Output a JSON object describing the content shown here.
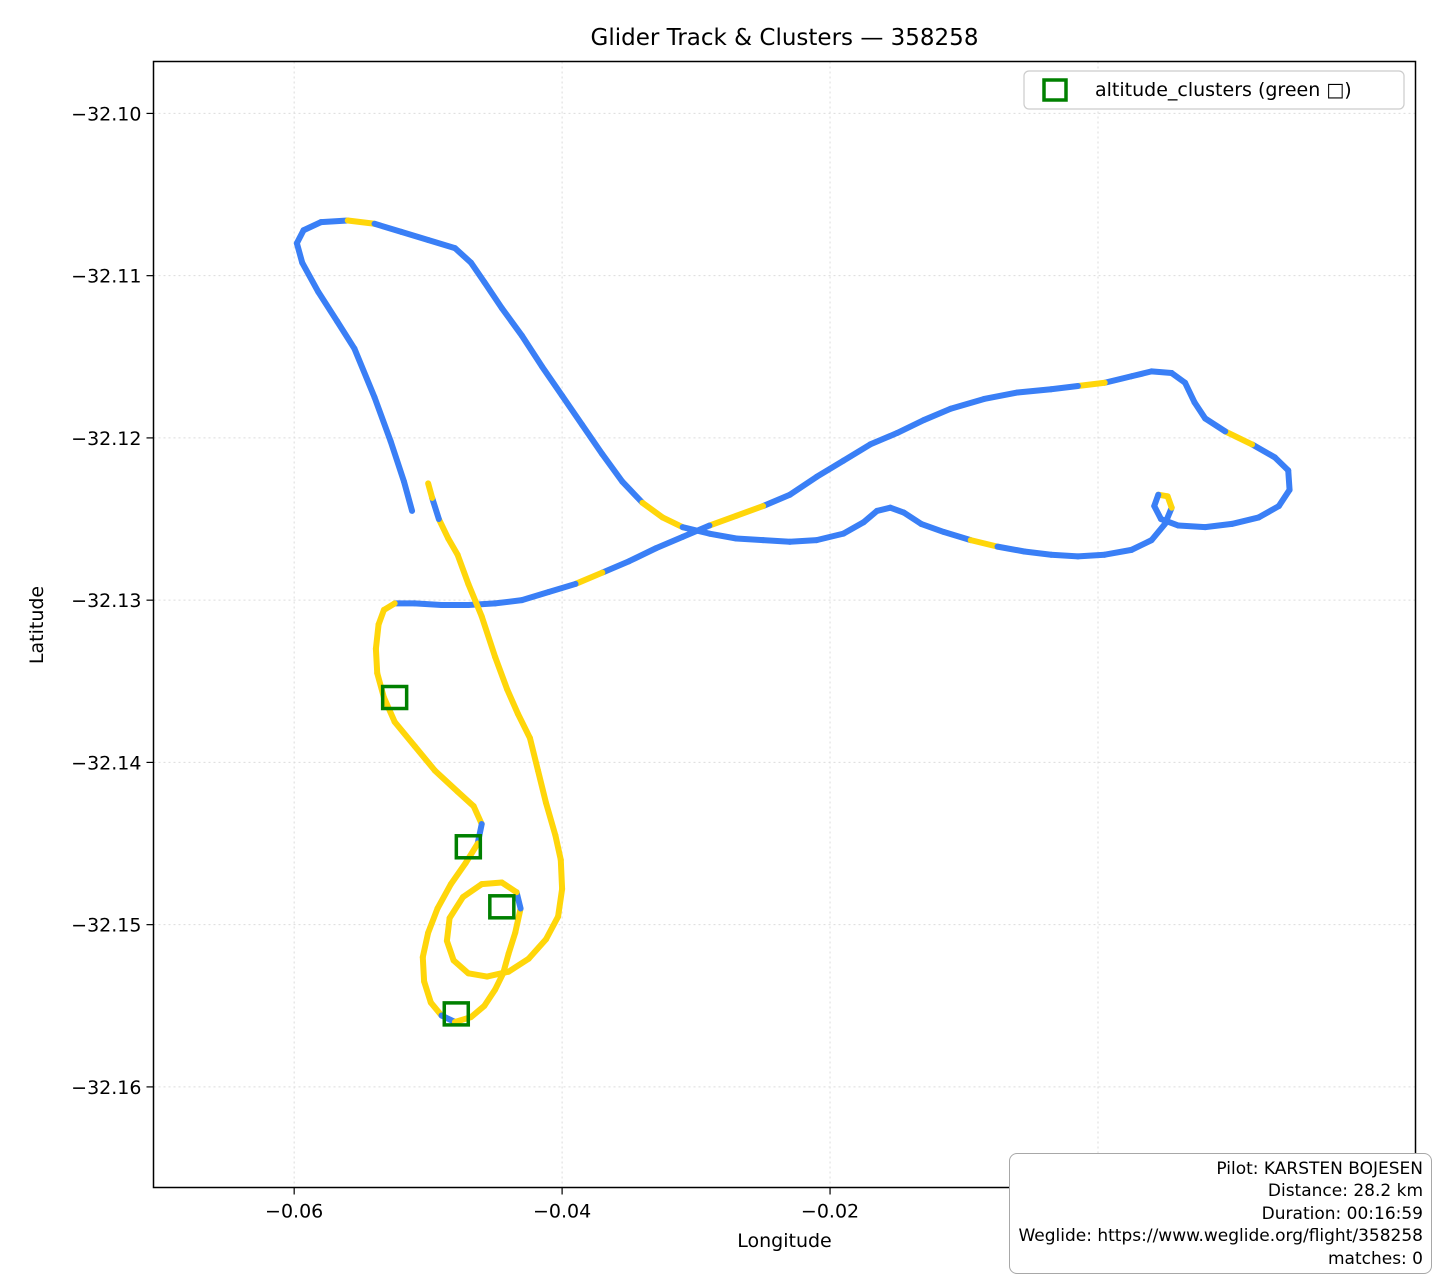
{
  "chart_data": {
    "type": "line",
    "title": "Glider Track & Clusters — 358258",
    "xlabel": "Longitude",
    "ylabel": "Latitude",
    "xlim": [
      -0.0705,
      0.0237
    ],
    "ylim": [
      -32.1662,
      -32.0968
    ],
    "xticks": [
      -0.06,
      -0.04,
      -0.02,
      0.0
    ],
    "xtick_labels": [
      "−0.06",
      "−0.04",
      "−0.02",
      "0.00"
    ],
    "yticks": [
      -32.1,
      -32.11,
      -32.12,
      -32.13,
      -32.14,
      -32.15,
      -32.16
    ],
    "ytick_labels": [
      "−32.10",
      "−32.11",
      "−32.12",
      "−32.13",
      "−32.14",
      "−32.15",
      "−32.16"
    ],
    "grid": true,
    "legend_position": "upper right",
    "legend_entries": [
      "altitude_clusters (green □)"
    ],
    "colors": {
      "track_blue": "#3a7ff6",
      "track_yellow": "#ffd60a",
      "cluster_green": "#008000",
      "grid": "#dcdcdc"
    },
    "series": [
      {
        "name": "track",
        "style": "segmented, colored by segment",
        "points": [
          [
            -0.0512,
            -32.1245
          ],
          [
            -0.0518,
            -32.1227
          ],
          [
            -0.0528,
            -32.1202
          ],
          [
            -0.054,
            -32.1175
          ],
          [
            -0.0555,
            -32.1145
          ],
          [
            -0.0568,
            -32.1128
          ],
          [
            -0.0582,
            -32.111
          ],
          [
            -0.0594,
            -32.1092
          ],
          [
            -0.0598,
            -32.108
          ],
          [
            -0.0593,
            -32.1072
          ],
          [
            -0.058,
            -32.1067
          ],
          [
            -0.056,
            -32.1066
          ],
          [
            -0.054,
            -32.1068
          ],
          [
            -0.052,
            -32.1073
          ],
          [
            -0.05,
            -32.1078
          ],
          [
            -0.048,
            -32.1083
          ],
          [
            -0.0468,
            -32.1092
          ],
          [
            -0.0458,
            -32.1104
          ],
          [
            -0.0445,
            -32.112
          ],
          [
            -0.043,
            -32.1137
          ],
          [
            -0.0415,
            -32.1156
          ],
          [
            -0.04,
            -32.1174
          ],
          [
            -0.0385,
            -32.1192
          ],
          [
            -0.037,
            -32.121
          ],
          [
            -0.0355,
            -32.1227
          ],
          [
            -0.034,
            -32.124
          ],
          [
            -0.0325,
            -32.1249
          ],
          [
            -0.031,
            -32.1255
          ],
          [
            -0.029,
            -32.1259
          ],
          [
            -0.027,
            -32.1262
          ],
          [
            -0.025,
            -32.1263
          ],
          [
            -0.023,
            -32.1264
          ],
          [
            -0.021,
            -32.1263
          ],
          [
            -0.019,
            -32.1259
          ],
          [
            -0.0175,
            -32.1252
          ],
          [
            -0.0165,
            -32.1245
          ],
          [
            -0.0155,
            -32.1243
          ],
          [
            -0.0145,
            -32.1246
          ],
          [
            -0.0132,
            -32.1253
          ],
          [
            -0.0115,
            -32.1258
          ],
          [
            -0.0095,
            -32.1263
          ],
          [
            -0.0075,
            -32.1267
          ],
          [
            -0.0055,
            -32.127
          ],
          [
            -0.0035,
            -32.1272
          ],
          [
            -0.0015,
            -32.1273
          ],
          [
            0.0005,
            -32.1272
          ],
          [
            0.0025,
            -32.1269
          ],
          [
            0.004,
            -32.1263
          ],
          [
            0.005,
            -32.1253
          ],
          [
            0.0055,
            -32.1243
          ],
          [
            0.0052,
            -32.1236
          ],
          [
            0.0045,
            -32.1235
          ],
          [
            0.0042,
            -32.1242
          ],
          [
            0.0047,
            -32.125
          ],
          [
            0.006,
            -32.1254
          ],
          [
            0.008,
            -32.1255
          ],
          [
            0.01,
            -32.1253
          ],
          [
            0.012,
            -32.1249
          ],
          [
            0.0135,
            -32.1242
          ],
          [
            0.0143,
            -32.1232
          ],
          [
            0.0142,
            -32.122
          ],
          [
            0.0132,
            -32.1212
          ],
          [
            0.0115,
            -32.1204
          ],
          [
            0.0095,
            -32.1196
          ],
          [
            0.008,
            -32.1188
          ],
          [
            0.0072,
            -32.1178
          ],
          [
            0.0065,
            -32.1166
          ],
          [
            0.0055,
            -32.116
          ],
          [
            0.004,
            -32.1159
          ],
          [
            0.0025,
            -32.1162
          ],
          [
            0.0005,
            -32.1166
          ],
          [
            -0.0015,
            -32.1168
          ],
          [
            -0.0035,
            -32.117
          ],
          [
            -0.006,
            -32.1172
          ],
          [
            -0.0085,
            -32.1176
          ],
          [
            -0.011,
            -32.1182
          ],
          [
            -0.013,
            -32.1189
          ],
          [
            -0.015,
            -32.1197
          ],
          [
            -0.017,
            -32.1204
          ],
          [
            -0.019,
            -32.1214
          ],
          [
            -0.021,
            -32.1224
          ],
          [
            -0.023,
            -32.1235
          ],
          [
            -0.025,
            -32.1242
          ],
          [
            -0.027,
            -32.1248
          ],
          [
            -0.029,
            -32.1254
          ],
          [
            -0.031,
            -32.1261
          ],
          [
            -0.033,
            -32.1268
          ],
          [
            -0.035,
            -32.1276
          ],
          [
            -0.037,
            -32.1283
          ],
          [
            -0.039,
            -32.129
          ],
          [
            -0.041,
            -32.1295
          ],
          [
            -0.043,
            -32.13
          ],
          [
            -0.045,
            -32.1302
          ],
          [
            -0.047,
            -32.1303
          ],
          [
            -0.049,
            -32.1303
          ],
          [
            -0.051,
            -32.1302
          ],
          [
            -0.0525,
            -32.1302
          ],
          [
            -0.0533,
            -32.1306
          ],
          [
            -0.0537,
            -32.1315
          ],
          [
            -0.0539,
            -32.133
          ],
          [
            -0.0538,
            -32.1345
          ],
          [
            -0.0533,
            -32.136
          ],
          [
            -0.0525,
            -32.1375
          ],
          [
            -0.051,
            -32.139
          ],
          [
            -0.0495,
            -32.1405
          ],
          [
            -0.0478,
            -32.1418
          ],
          [
            -0.0466,
            -32.1427
          ],
          [
            -0.046,
            -32.1438
          ],
          [
            -0.0463,
            -32.145
          ],
          [
            -0.0472,
            -32.1462
          ],
          [
            -0.0483,
            -32.1475
          ],
          [
            -0.0493,
            -32.149
          ],
          [
            -0.05,
            -32.1505
          ],
          [
            -0.0504,
            -32.152
          ],
          [
            -0.0503,
            -32.1535
          ],
          [
            -0.0498,
            -32.1548
          ],
          [
            -0.049,
            -32.1556
          ],
          [
            -0.048,
            -32.156
          ],
          [
            -0.0468,
            -32.1557
          ],
          [
            -0.0458,
            -32.155
          ],
          [
            -0.045,
            -32.154
          ],
          [
            -0.0444,
            -32.153
          ],
          [
            -0.044,
            -32.1518
          ],
          [
            -0.0435,
            -32.1505
          ],
          [
            -0.0431,
            -32.149
          ],
          [
            -0.0434,
            -32.148
          ],
          [
            -0.0445,
            -32.1474
          ],
          [
            -0.046,
            -32.1475
          ],
          [
            -0.0474,
            -32.1483
          ],
          [
            -0.0484,
            -32.1496
          ],
          [
            -0.0486,
            -32.151
          ],
          [
            -0.0481,
            -32.1522
          ],
          [
            -0.047,
            -32.153
          ],
          [
            -0.0456,
            -32.1532
          ],
          [
            -0.044,
            -32.1529
          ],
          [
            -0.0425,
            -32.1521
          ],
          [
            -0.0412,
            -32.1509
          ],
          [
            -0.0403,
            -32.1495
          ],
          [
            -0.04,
            -32.1478
          ],
          [
            -0.0401,
            -32.146
          ],
          [
            -0.0405,
            -32.1445
          ],
          [
            -0.0412,
            -32.1425
          ],
          [
            -0.0418,
            -32.1405
          ],
          [
            -0.0424,
            -32.1385
          ],
          [
            -0.0433,
            -32.137
          ],
          [
            -0.0441,
            -32.1355
          ],
          [
            -0.045,
            -32.1335
          ],
          [
            -0.046,
            -32.131
          ],
          [
            -0.047,
            -32.129
          ],
          [
            -0.0478,
            -32.1272
          ],
          [
            -0.0485,
            -32.1262
          ],
          [
            -0.0492,
            -32.125
          ],
          [
            -0.0497,
            -32.1237
          ],
          [
            -0.05,
            -32.1228
          ]
        ],
        "segment_colors": "BBBBBBBBBBBYBBBBBBBBBBBBBYYBBBBBBBBBBBBBYBBBBBBBBYYBBBBBBBBBBBYBBBBBBBYBBBBBBBBBBBYYBBBBYBBBBBBBYYYYYYYYYYYBYYYYYYYYBYYYYYYYBYYYYYYYYYYYYYYYYYYYYYYYYYYBYYYYY"
      },
      {
        "name": "altitude_clusters (green □)",
        "style": "hollow square markers",
        "points": [
          [
            -0.0525,
            -32.136
          ],
          [
            -0.047,
            -32.1452
          ],
          [
            -0.0445,
            -32.1489
          ],
          [
            -0.0479,
            -32.1555
          ]
        ]
      }
    ]
  },
  "info": {
    "pilot": "Pilot: KARSTEN BOJESEN",
    "distance": "Distance: 28.2 km",
    "duration": "Duration: 00:16:59",
    "weglide": "Weglide: https://www.weglide.org/flight/358258",
    "matches": "matches: 0"
  }
}
